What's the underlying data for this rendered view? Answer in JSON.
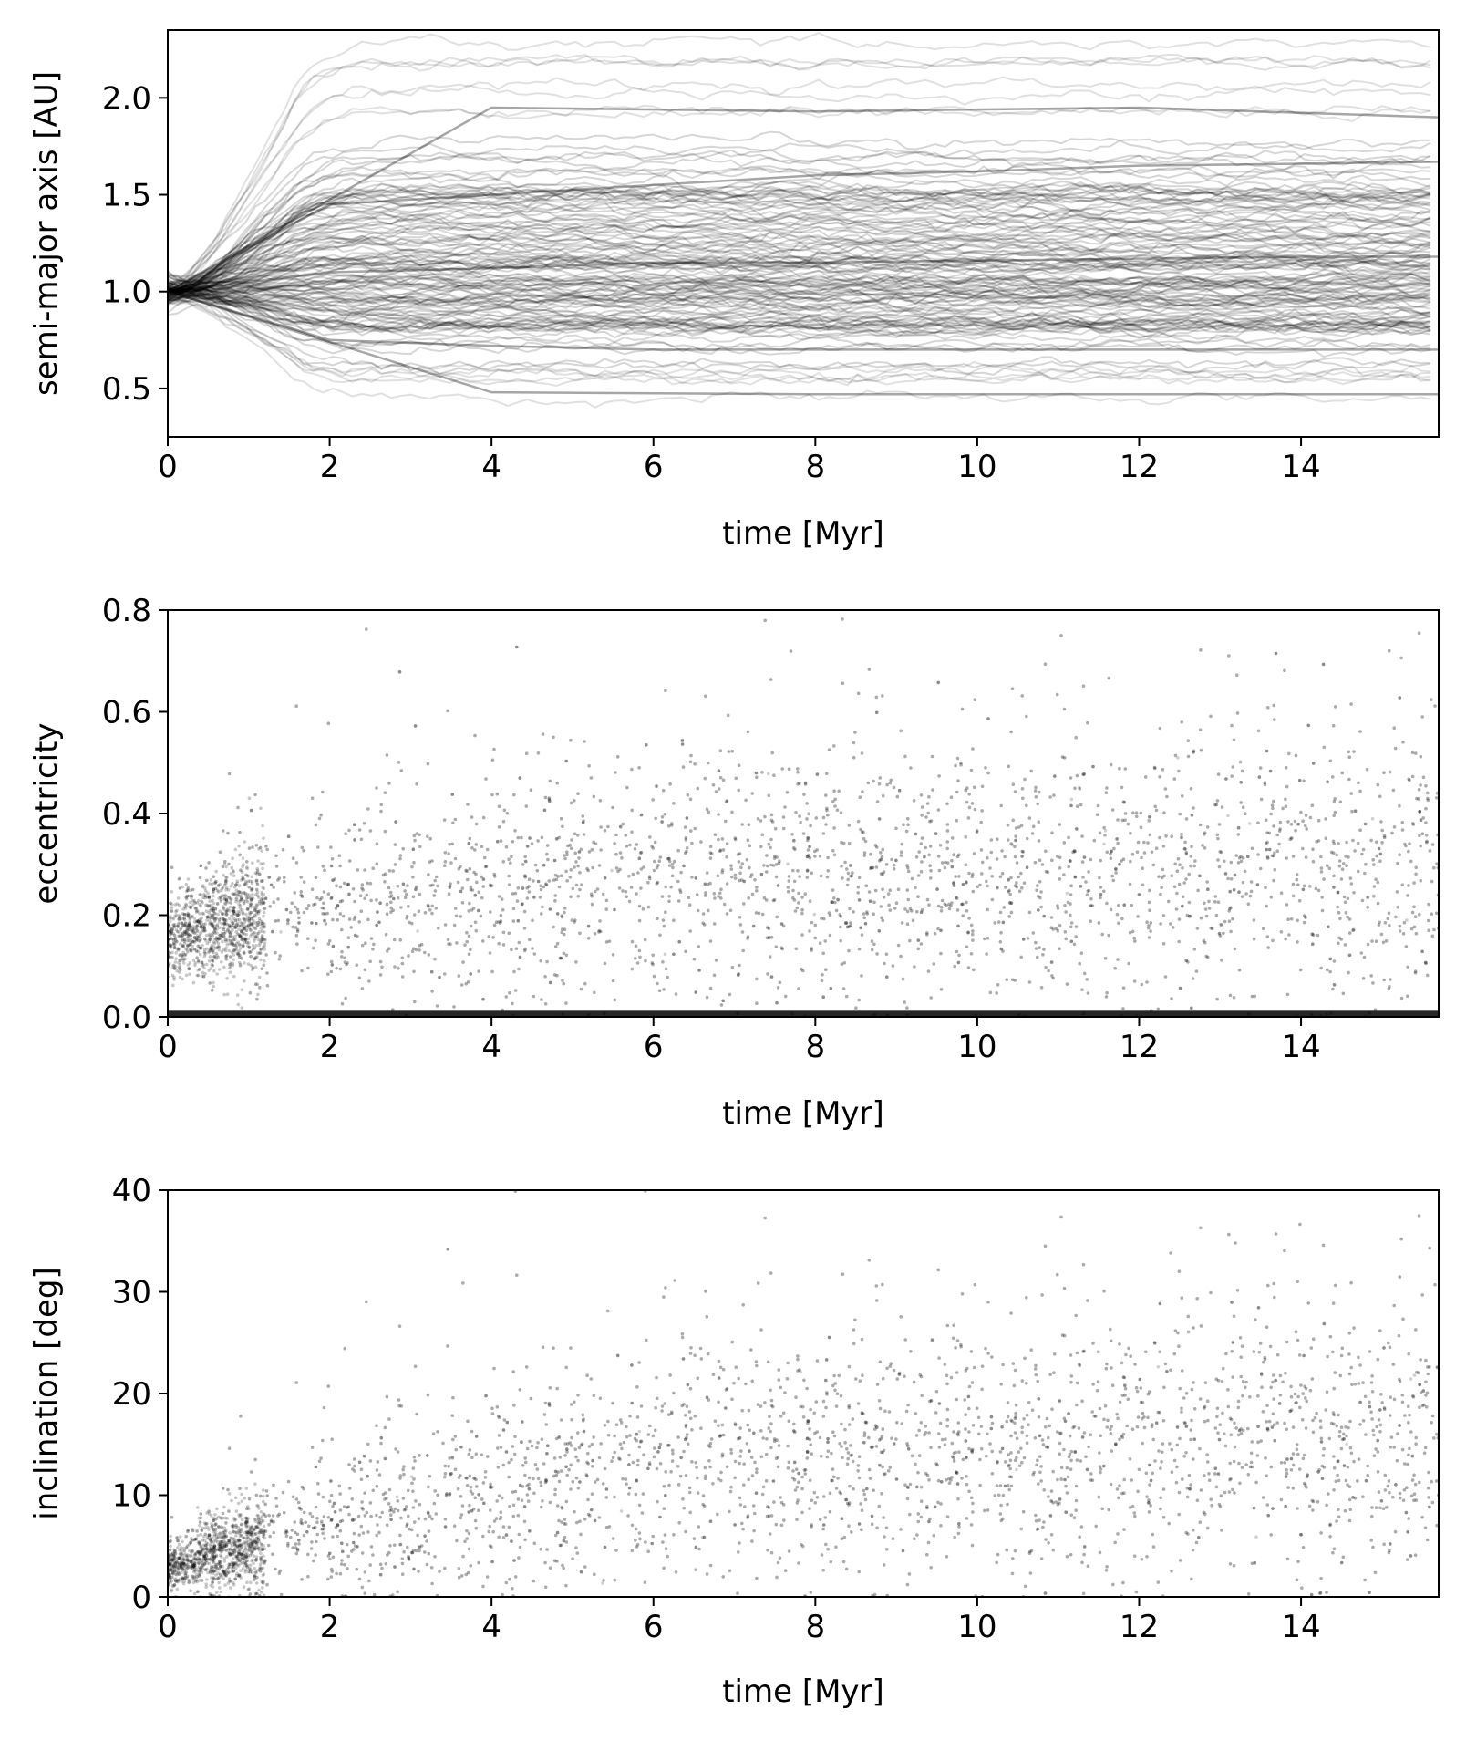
{
  "chart_data": [
    {
      "type": "line",
      "description_of_marks": "many semi-transparent black trajectories",
      "xlabel": "time [Myr]",
      "ylabel": "semi-major axis [AU]",
      "xlim": [
        0,
        15.7
      ],
      "ylim": [
        0.25,
        2.35
      ],
      "xticks": [
        0,
        2,
        4,
        6,
        8,
        10,
        12,
        14
      ],
      "yticks": [
        0.5,
        1.0,
        1.5,
        2.0
      ],
      "ytick_labels": [
        "0.5",
        "1.0",
        "1.5",
        "2.0"
      ],
      "grid": false,
      "series": [
        {
          "x": [
            0,
            2,
            4,
            6,
            8,
            10,
            12,
            14,
            15.7
          ],
          "values": [
            1.0,
            1.1,
            1.12,
            1.15,
            1.15,
            1.16,
            1.17,
            1.18,
            1.18
          ]
        },
        {
          "x": [
            0,
            2,
            4,
            6,
            8,
            10,
            12,
            14,
            15.7
          ],
          "values": [
            1.0,
            0.75,
            0.72,
            0.7,
            0.7,
            0.7,
            0.7,
            0.7,
            0.7
          ]
        },
        {
          "x": [
            0,
            2,
            4,
            6,
            8,
            10,
            12,
            14,
            15.7
          ],
          "values": [
            1.0,
            1.45,
            1.5,
            1.55,
            1.6,
            1.62,
            1.65,
            1.66,
            1.67
          ]
        },
        {
          "x": [
            0,
            4,
            8,
            12,
            15.7
          ],
          "values": [
            1.0,
            0.48,
            0.47,
            0.47,
            0.47
          ]
        },
        {
          "x": [
            0,
            4,
            8,
            12,
            15.7
          ],
          "values": [
            1.0,
            1.95,
            1.93,
            1.95,
            1.9
          ]
        }
      ]
    },
    {
      "type": "scatter",
      "description_of_marks": "dense cloud of semi-transparent black points",
      "xlabel": "time [Myr]",
      "ylabel": "eccentricity",
      "xlim": [
        0,
        15.7
      ],
      "ylim": [
        0.0,
        0.8
      ],
      "xticks": [
        0,
        2,
        4,
        6,
        8,
        10,
        12,
        14
      ],
      "yticks": [
        0.0,
        0.2,
        0.4,
        0.6,
        0.8
      ],
      "ytick_labels": [
        "0.0",
        "0.2",
        "0.4",
        "0.6",
        "0.8"
      ],
      "grid": false,
      "envelope": {
        "x": [
          0,
          1,
          2,
          4,
          6,
          8,
          10,
          12,
          14,
          15.7
        ],
        "median": [
          0.15,
          0.2,
          0.22,
          0.24,
          0.25,
          0.26,
          0.27,
          0.27,
          0.28,
          0.28
        ],
        "spread": [
          0.06,
          0.1,
          0.13,
          0.15,
          0.16,
          0.17,
          0.18,
          0.18,
          0.19,
          0.19
        ]
      }
    },
    {
      "type": "scatter",
      "description_of_marks": "dense cloud of semi-transparent black points",
      "xlabel": "time [Myr]",
      "ylabel": "inclination [deg]",
      "xlim": [
        0,
        15.7
      ],
      "ylim": [
        0,
        40
      ],
      "xticks": [
        0,
        2,
        4,
        6,
        8,
        10,
        12,
        14
      ],
      "yticks": [
        0,
        10,
        20,
        30,
        40
      ],
      "ytick_labels": [
        "0",
        "10",
        "20",
        "30",
        "40"
      ],
      "grid": false,
      "envelope": {
        "x": [
          0,
          1,
          2,
          4,
          6,
          8,
          10,
          12,
          14,
          15.7
        ],
        "median": [
          3,
          5,
          7,
          10,
          12,
          13,
          14,
          14,
          15,
          15
        ],
        "spread": [
          2,
          3.5,
          5,
          6.5,
          7.5,
          8,
          8.5,
          9,
          9,
          9
        ]
      }
    }
  ]
}
